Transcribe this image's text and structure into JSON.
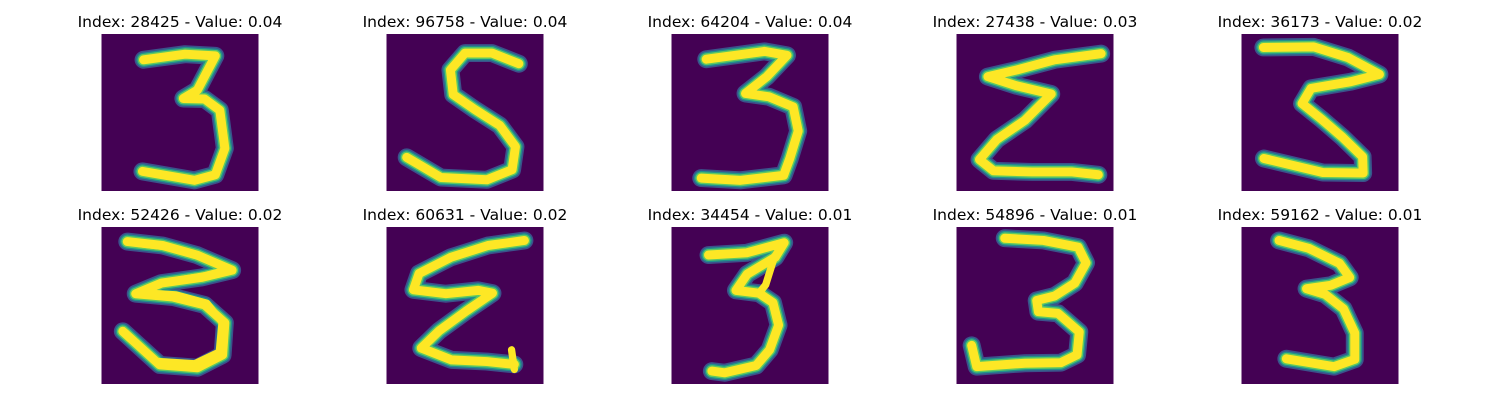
{
  "colors": {
    "background": "#440154",
    "edge_dark": "#3b528b",
    "edge_mid": "#21918c",
    "edge_light": "#5ec962",
    "stroke": "#fde725"
  },
  "panels": [
    {
      "title": "Index: 28425 - Value: 0.04",
      "digit": "3"
    },
    {
      "title": "Index: 96758 - Value: 0.04",
      "digit": "5"
    },
    {
      "title": "Index: 64204 - Value: 0.04",
      "digit": "3"
    },
    {
      "title": "Index: 27438 - Value: 0.03",
      "digit": "3"
    },
    {
      "title": "Index: 36173 - Value: 0.02",
      "digit": "3"
    },
    {
      "title": "Index: 52426 - Value: 0.02",
      "digit": "3"
    },
    {
      "title": "Index: 60631 - Value: 0.02",
      "digit": "3"
    },
    {
      "title": "Index: 34454 - Value: 0.01",
      "digit": "3"
    },
    {
      "title": "Index: 54896 - Value: 0.01",
      "digit": "3"
    },
    {
      "title": "Index: 59162 - Value: 0.01",
      "digit": "3"
    }
  ]
}
